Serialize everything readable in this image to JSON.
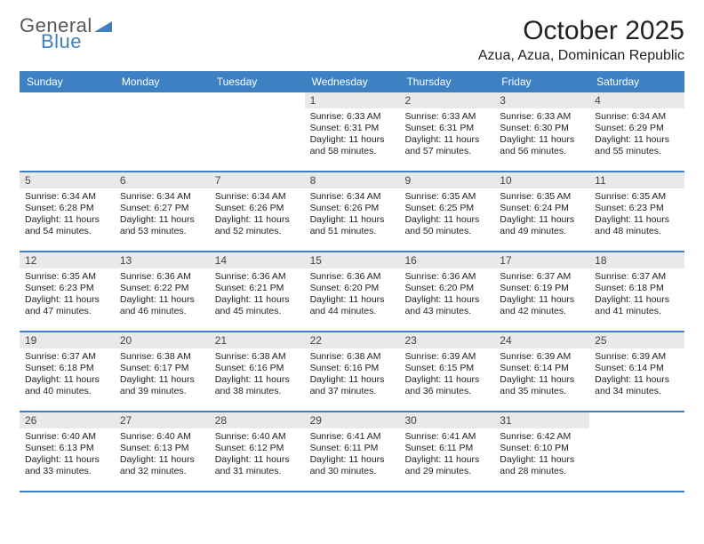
{
  "brand": {
    "part1": "General",
    "part2": "Blue"
  },
  "title": "October 2025",
  "location": "Azua, Azua, Dominican Republic",
  "colors": {
    "header_bg": "#3d81c2",
    "header_text": "#ffffff",
    "daynum_bg": "#e9e9e9",
    "row_border": "#3d81c2",
    "body_text": "#222222",
    "logo_gray": "#575757",
    "logo_blue": "#3d81c2"
  },
  "typography": {
    "title_fontsize": 30,
    "location_fontsize": 16,
    "dayheader_fontsize": 12,
    "daynum_fontsize": 12,
    "body_fontsize": 10.5
  },
  "dayHeaders": [
    "Sunday",
    "Monday",
    "Tuesday",
    "Wednesday",
    "Thursday",
    "Friday",
    "Saturday"
  ],
  "weeks": [
    [
      {
        "num": "",
        "lines": []
      },
      {
        "num": "",
        "lines": []
      },
      {
        "num": "",
        "lines": []
      },
      {
        "num": "1",
        "lines": [
          "Sunrise: 6:33 AM",
          "Sunset: 6:31 PM",
          "Daylight: 11 hours",
          "and 58 minutes."
        ]
      },
      {
        "num": "2",
        "lines": [
          "Sunrise: 6:33 AM",
          "Sunset: 6:31 PM",
          "Daylight: 11 hours",
          "and 57 minutes."
        ]
      },
      {
        "num": "3",
        "lines": [
          "Sunrise: 6:33 AM",
          "Sunset: 6:30 PM",
          "Daylight: 11 hours",
          "and 56 minutes."
        ]
      },
      {
        "num": "4",
        "lines": [
          "Sunrise: 6:34 AM",
          "Sunset: 6:29 PM",
          "Daylight: 11 hours",
          "and 55 minutes."
        ]
      }
    ],
    [
      {
        "num": "5",
        "lines": [
          "Sunrise: 6:34 AM",
          "Sunset: 6:28 PM",
          "Daylight: 11 hours",
          "and 54 minutes."
        ]
      },
      {
        "num": "6",
        "lines": [
          "Sunrise: 6:34 AM",
          "Sunset: 6:27 PM",
          "Daylight: 11 hours",
          "and 53 minutes."
        ]
      },
      {
        "num": "7",
        "lines": [
          "Sunrise: 6:34 AM",
          "Sunset: 6:26 PM",
          "Daylight: 11 hours",
          "and 52 minutes."
        ]
      },
      {
        "num": "8",
        "lines": [
          "Sunrise: 6:34 AM",
          "Sunset: 6:26 PM",
          "Daylight: 11 hours",
          "and 51 minutes."
        ]
      },
      {
        "num": "9",
        "lines": [
          "Sunrise: 6:35 AM",
          "Sunset: 6:25 PM",
          "Daylight: 11 hours",
          "and 50 minutes."
        ]
      },
      {
        "num": "10",
        "lines": [
          "Sunrise: 6:35 AM",
          "Sunset: 6:24 PM",
          "Daylight: 11 hours",
          "and 49 minutes."
        ]
      },
      {
        "num": "11",
        "lines": [
          "Sunrise: 6:35 AM",
          "Sunset: 6:23 PM",
          "Daylight: 11 hours",
          "and 48 minutes."
        ]
      }
    ],
    [
      {
        "num": "12",
        "lines": [
          "Sunrise: 6:35 AM",
          "Sunset: 6:23 PM",
          "Daylight: 11 hours",
          "and 47 minutes."
        ]
      },
      {
        "num": "13",
        "lines": [
          "Sunrise: 6:36 AM",
          "Sunset: 6:22 PM",
          "Daylight: 11 hours",
          "and 46 minutes."
        ]
      },
      {
        "num": "14",
        "lines": [
          "Sunrise: 6:36 AM",
          "Sunset: 6:21 PM",
          "Daylight: 11 hours",
          "and 45 minutes."
        ]
      },
      {
        "num": "15",
        "lines": [
          "Sunrise: 6:36 AM",
          "Sunset: 6:20 PM",
          "Daylight: 11 hours",
          "and 44 minutes."
        ]
      },
      {
        "num": "16",
        "lines": [
          "Sunrise: 6:36 AM",
          "Sunset: 6:20 PM",
          "Daylight: 11 hours",
          "and 43 minutes."
        ]
      },
      {
        "num": "17",
        "lines": [
          "Sunrise: 6:37 AM",
          "Sunset: 6:19 PM",
          "Daylight: 11 hours",
          "and 42 minutes."
        ]
      },
      {
        "num": "18",
        "lines": [
          "Sunrise: 6:37 AM",
          "Sunset: 6:18 PM",
          "Daylight: 11 hours",
          "and 41 minutes."
        ]
      }
    ],
    [
      {
        "num": "19",
        "lines": [
          "Sunrise: 6:37 AM",
          "Sunset: 6:18 PM",
          "Daylight: 11 hours",
          "and 40 minutes."
        ]
      },
      {
        "num": "20",
        "lines": [
          "Sunrise: 6:38 AM",
          "Sunset: 6:17 PM",
          "Daylight: 11 hours",
          "and 39 minutes."
        ]
      },
      {
        "num": "21",
        "lines": [
          "Sunrise: 6:38 AM",
          "Sunset: 6:16 PM",
          "Daylight: 11 hours",
          "and 38 minutes."
        ]
      },
      {
        "num": "22",
        "lines": [
          "Sunrise: 6:38 AM",
          "Sunset: 6:16 PM",
          "Daylight: 11 hours",
          "and 37 minutes."
        ]
      },
      {
        "num": "23",
        "lines": [
          "Sunrise: 6:39 AM",
          "Sunset: 6:15 PM",
          "Daylight: 11 hours",
          "and 36 minutes."
        ]
      },
      {
        "num": "24",
        "lines": [
          "Sunrise: 6:39 AM",
          "Sunset: 6:14 PM",
          "Daylight: 11 hours",
          "and 35 minutes."
        ]
      },
      {
        "num": "25",
        "lines": [
          "Sunrise: 6:39 AM",
          "Sunset: 6:14 PM",
          "Daylight: 11 hours",
          "and 34 minutes."
        ]
      }
    ],
    [
      {
        "num": "26",
        "lines": [
          "Sunrise: 6:40 AM",
          "Sunset: 6:13 PM",
          "Daylight: 11 hours",
          "and 33 minutes."
        ]
      },
      {
        "num": "27",
        "lines": [
          "Sunrise: 6:40 AM",
          "Sunset: 6:13 PM",
          "Daylight: 11 hours",
          "and 32 minutes."
        ]
      },
      {
        "num": "28",
        "lines": [
          "Sunrise: 6:40 AM",
          "Sunset: 6:12 PM",
          "Daylight: 11 hours",
          "and 31 minutes."
        ]
      },
      {
        "num": "29",
        "lines": [
          "Sunrise: 6:41 AM",
          "Sunset: 6:11 PM",
          "Daylight: 11 hours",
          "and 30 minutes."
        ]
      },
      {
        "num": "30",
        "lines": [
          "Sunrise: 6:41 AM",
          "Sunset: 6:11 PM",
          "Daylight: 11 hours",
          "and 29 minutes."
        ]
      },
      {
        "num": "31",
        "lines": [
          "Sunrise: 6:42 AM",
          "Sunset: 6:10 PM",
          "Daylight: 11 hours",
          "and 28 minutes."
        ]
      },
      {
        "num": "",
        "lines": []
      }
    ]
  ]
}
